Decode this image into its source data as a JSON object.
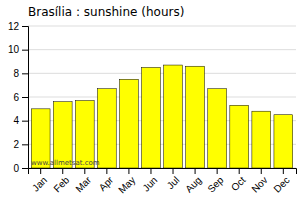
{
  "chart_data": {
    "type": "bar",
    "title": "Brasília : sunshine (hours)",
    "categories": [
      "Jan",
      "Feb",
      "Mar",
      "Apr",
      "May",
      "Jun",
      "Jul",
      "Aug",
      "Sep",
      "Oct",
      "Nov",
      "Dec"
    ],
    "values": [
      5.0,
      5.6,
      5.7,
      6.7,
      7.5,
      8.5,
      8.7,
      8.6,
      6.7,
      5.3,
      4.8,
      4.5
    ],
    "color": "#ffff00",
    "ylim": [
      0,
      12
    ],
    "yticks": [
      0,
      2,
      4,
      6,
      8,
      10,
      12
    ],
    "grid": true,
    "annotations": [
      "www.allmetsat.com"
    ]
  }
}
